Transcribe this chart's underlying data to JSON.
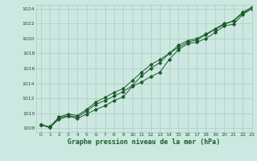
{
  "title": "Graphe pression niveau de la mer (hPa)",
  "bg_color": "#cce8e0",
  "line_color": "#1a5c2a",
  "grid_color": "#aaccc4",
  "ylim": [
    1007.5,
    1024.5
  ],
  "xlim": [
    -0.5,
    23
  ],
  "yticks": [
    1008,
    1010,
    1012,
    1014,
    1016,
    1018,
    1020,
    1022,
    1024
  ],
  "xticks": [
    0,
    1,
    2,
    3,
    4,
    5,
    6,
    7,
    8,
    9,
    10,
    11,
    12,
    13,
    14,
    15,
    16,
    17,
    18,
    19,
    20,
    21,
    22,
    23
  ],
  "series1": {
    "x": [
      0,
      1,
      2,
      3,
      4,
      5,
      6,
      7,
      8,
      9,
      10,
      11,
      12,
      13,
      14,
      15,
      16,
      17,
      18,
      19,
      20,
      21,
      22,
      23
    ],
    "y": [
      1008.5,
      1008.1,
      1009.2,
      1009.6,
      1009.3,
      1009.9,
      1010.5,
      1011.0,
      1011.7,
      1012.2,
      1013.6,
      1014.2,
      1014.9,
      1015.5,
      1017.2,
      1018.5,
      1019.3,
      1019.5,
      1020.0,
      1020.8,
      1021.7,
      1021.9,
      1023.2,
      1024.0
    ]
  },
  "series2": {
    "x": [
      0,
      1,
      2,
      3,
      4,
      5,
      6,
      7,
      8,
      9,
      10,
      11,
      12,
      13,
      14,
      15,
      16,
      17,
      18,
      19,
      20,
      21,
      22,
      23
    ],
    "y": [
      1008.5,
      1008.1,
      1009.4,
      1009.7,
      1009.5,
      1010.3,
      1011.2,
      1011.7,
      1012.3,
      1012.9,
      1013.7,
      1015.0,
      1016.0,
      1016.8,
      1018.0,
      1019.1,
      1019.7,
      1020.0,
      1020.6,
      1021.3,
      1022.0,
      1022.3,
      1023.4,
      1024.0
    ]
  },
  "series3": {
    "x": [
      0,
      1,
      2,
      3,
      4,
      5,
      6,
      7,
      8,
      9,
      10,
      11,
      12,
      13,
      14,
      15,
      16,
      17,
      18,
      19,
      20,
      21,
      22,
      23
    ],
    "y": [
      1008.5,
      1008.2,
      1009.5,
      1009.9,
      1009.7,
      1010.5,
      1011.5,
      1012.1,
      1012.8,
      1013.3,
      1014.4,
      1015.5,
      1016.5,
      1017.2,
      1018.0,
      1018.8,
      1019.5,
      1019.8,
      1020.5,
      1021.2,
      1021.9,
      1022.4,
      1023.5,
      1024.2
    ]
  }
}
